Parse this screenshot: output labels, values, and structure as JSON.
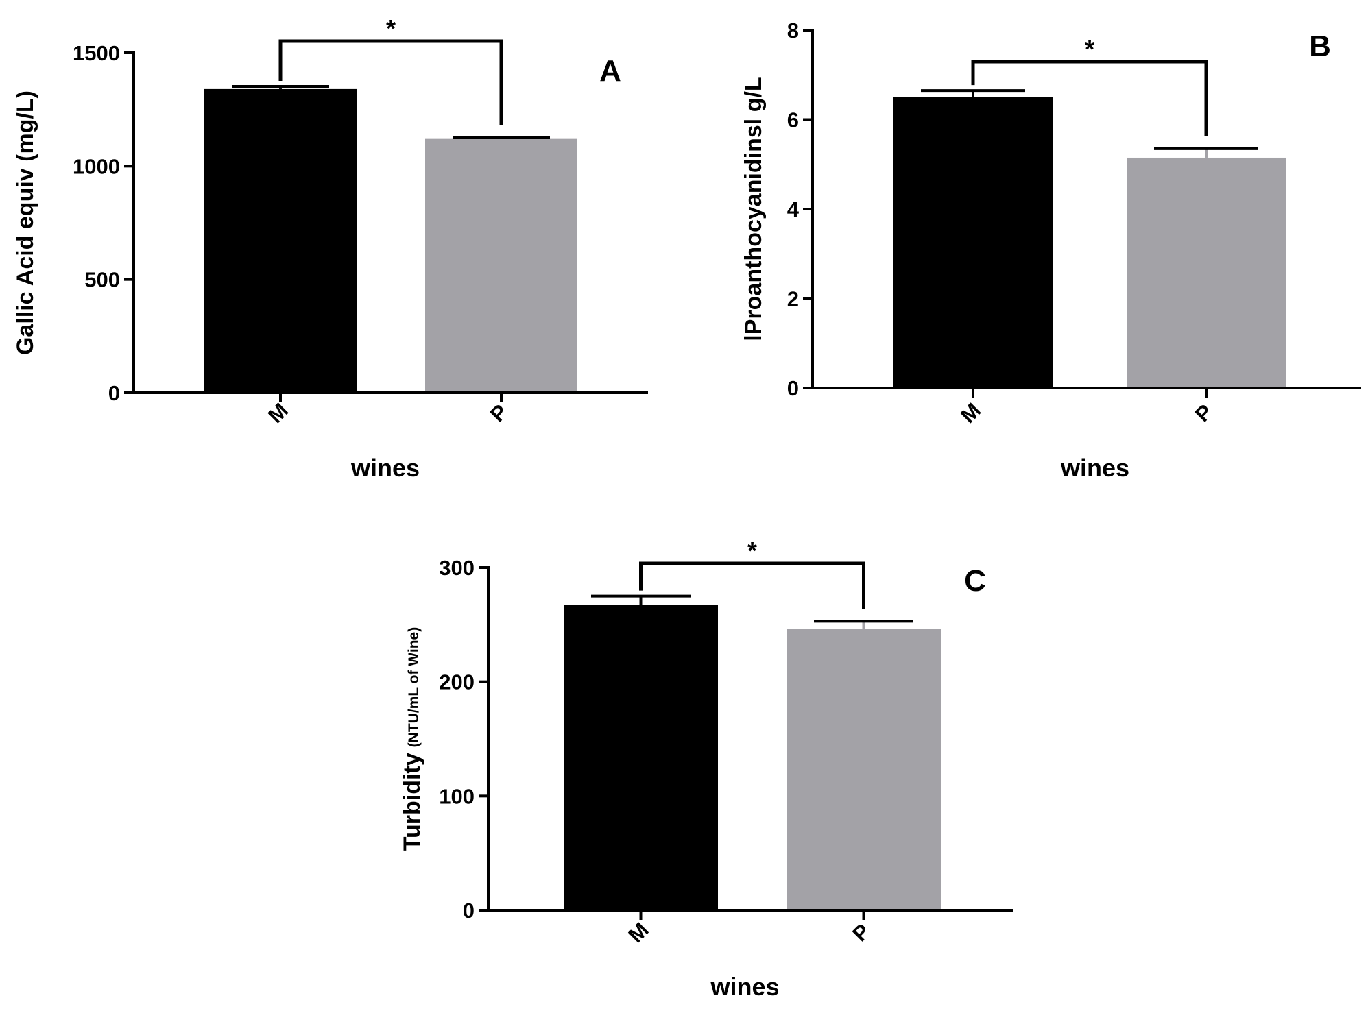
{
  "chart_data": [
    {
      "type": "bar",
      "panel_letter": "A",
      "categories": [
        "M",
        "P"
      ],
      "values": [
        1340,
        1120
      ],
      "errors": [
        12,
        5
      ],
      "colors": [
        "#000000",
        "#a3a2a7"
      ],
      "xlabel": "wines",
      "ylabel": "Gallic Acid equiv (mg/L)",
      "ylabel_small": "",
      "ylim": [
        0,
        1500
      ],
      "yticks": [
        "0",
        "500",
        "1000",
        "1500"
      ],
      "significance": "*",
      "grid": false
    },
    {
      "type": "bar",
      "panel_letter": "B",
      "categories": [
        "M",
        "P"
      ],
      "values": [
        6.5,
        5.15
      ],
      "errors": [
        0.15,
        0.2
      ],
      "colors": [
        "#000000",
        "#a3a2a7"
      ],
      "xlabel": "wines",
      "ylabel": "lProanthocyanidinsl g/L",
      "ylabel_small": "",
      "ylim": [
        0,
        8
      ],
      "yticks": [
        "0",
        "2",
        "4",
        "6",
        "8"
      ],
      "significance": "*",
      "grid": false
    },
    {
      "type": "bar",
      "panel_letter": "C",
      "categories": [
        "M",
        "P"
      ],
      "values": [
        267,
        246
      ],
      "errors": [
        8,
        7
      ],
      "colors": [
        "#000000",
        "#a3a2a7"
      ],
      "xlabel": "wines",
      "ylabel": "Turbidity",
      "ylabel_small": "(NTU/mL of Wine)",
      "ylim": [
        0,
        300
      ],
      "yticks": [
        "0",
        "100",
        "200",
        "300"
      ],
      "significance": "*",
      "grid": false
    }
  ]
}
